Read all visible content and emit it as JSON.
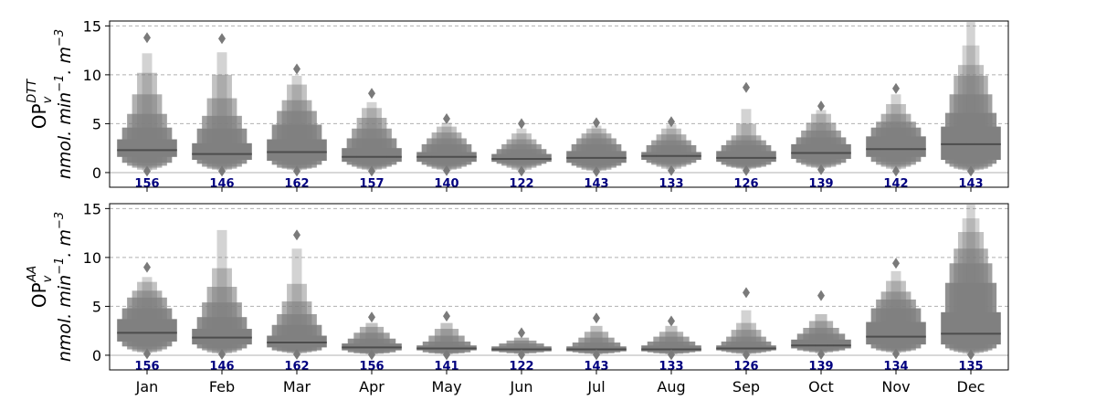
{
  "chart_data": [
    {
      "type": "boxen",
      "ylabel_main": "OP",
      "ylabel_sub": "v",
      "ylabel_sup": "DTT",
      "ylabel_units": "nmol. min",
      "ylabel_units_sup1": "−1",
      "ylabel_units_mid": ". m",
      "ylabel_units_sup2": "−3",
      "ylim": [
        -1.5,
        15.5
      ],
      "yticks": [
        0,
        5,
        10,
        15
      ],
      "grid": true,
      "series": [
        {
          "month": "Jan",
          "count": "156",
          "median": 2.3,
          "boxes": [
            [
              1.6,
              3.4
            ],
            [
              1.0,
              4.6
            ],
            [
              0.7,
              6.0
            ],
            [
              0.5,
              8.0
            ],
            [
              0.3,
              10.2
            ],
            [
              0.2,
              12.2
            ]
          ],
          "outliers_high": [
            13.8
          ],
          "outliers_low": [
            0.15
          ]
        },
        {
          "month": "Feb",
          "count": "146",
          "median": 1.9,
          "boxes": [
            [
              1.3,
              3.0
            ],
            [
              0.9,
              4.5
            ],
            [
              0.6,
              5.8
            ],
            [
              0.4,
              7.6
            ],
            [
              0.3,
              10.0
            ],
            [
              0.2,
              12.3
            ]
          ],
          "outliers_high": [
            13.7
          ],
          "outliers_low": [
            0.15
          ]
        },
        {
          "month": "Mar",
          "count": "162",
          "median": 2.1,
          "boxes": [
            [
              1.2,
              3.4
            ],
            [
              0.8,
              4.9
            ],
            [
              0.5,
              6.3
            ],
            [
              0.4,
              7.4
            ],
            [
              0.3,
              9.0
            ],
            [
              0.2,
              9.9
            ]
          ],
          "outliers_high": [
            10.6
          ],
          "outliers_low": [
            0.15
          ]
        },
        {
          "month": "Apr",
          "count": "157",
          "median": 1.6,
          "boxes": [
            [
              1.1,
              2.5
            ],
            [
              0.8,
              3.5
            ],
            [
              0.6,
              4.5
            ],
            [
              0.4,
              5.6
            ],
            [
              0.3,
              6.6
            ],
            [
              0.2,
              7.2
            ]
          ],
          "outliers_high": [
            8.1
          ],
          "outliers_low": [
            0.15
          ]
        },
        {
          "month": "May",
          "count": "140",
          "median": 1.6,
          "boxes": [
            [
              1.1,
              2.1
            ],
            [
              0.8,
              2.9
            ],
            [
              0.6,
              3.5
            ],
            [
              0.4,
              4.1
            ],
            [
              0.3,
              4.7
            ],
            [
              0.2,
              5.1
            ]
          ],
          "outliers_high": [
            5.5
          ],
          "outliers_low": [
            0.2
          ]
        },
        {
          "month": "Jun",
          "count": "122",
          "median": 1.4,
          "boxes": [
            [
              1.1,
              1.9
            ],
            [
              0.9,
              2.4
            ],
            [
              0.7,
              2.9
            ],
            [
              0.5,
              3.4
            ],
            [
              0.3,
              4.0
            ],
            [
              0.2,
              4.5
            ]
          ],
          "outliers_high": [
            5.0
          ],
          "outliers_low": [
            0.15
          ]
        },
        {
          "month": "Jul",
          "count": "143",
          "median": 1.5,
          "boxes": [
            [
              1.0,
              2.2
            ],
            [
              0.7,
              2.9
            ],
            [
              0.5,
              3.5
            ],
            [
              0.3,
              4.0
            ],
            [
              0.2,
              4.5
            ],
            [
              0.15,
              4.8
            ]
          ],
          "outliers_high": [
            5.1
          ],
          "outliers_low": [
            0.1
          ]
        },
        {
          "month": "Aug",
          "count": "133",
          "median": 1.7,
          "boxes": [
            [
              1.3,
              2.1
            ],
            [
              1.0,
              2.8
            ],
            [
              0.8,
              3.3
            ],
            [
              0.6,
              3.9
            ],
            [
              0.4,
              4.5
            ],
            [
              0.3,
              4.9
            ]
          ],
          "outliers_high": [
            5.2
          ],
          "outliers_low": [
            0.2
          ]
        },
        {
          "month": "Sep",
          "count": "126",
          "median": 1.5,
          "boxes": [
            [
              1.1,
              2.2
            ],
            [
              0.8,
              2.8
            ],
            [
              0.6,
              3.3
            ],
            [
              0.5,
              3.8
            ],
            [
              0.4,
              5.0
            ],
            [
              0.3,
              6.5
            ]
          ],
          "outliers_high": [
            8.7
          ],
          "outliers_low": [
            0.2
          ]
        },
        {
          "month": "Oct",
          "count": "139",
          "median": 2.0,
          "boxes": [
            [
              1.4,
              2.9
            ],
            [
              1.0,
              3.6
            ],
            [
              0.8,
              4.3
            ],
            [
              0.6,
              5.1
            ],
            [
              0.5,
              6.0
            ],
            [
              0.4,
              6.4
            ]
          ],
          "outliers_high": [
            6.8
          ],
          "outliers_low": [
            0.3
          ]
        },
        {
          "month": "Nov",
          "count": "142",
          "median": 2.4,
          "boxes": [
            [
              1.6,
              3.7
            ],
            [
              1.1,
              4.6
            ],
            [
              0.8,
              5.2
            ],
            [
              0.6,
              6.0
            ],
            [
              0.4,
              7.0
            ],
            [
              0.3,
              8.0
            ]
          ],
          "outliers_high": [
            8.6
          ],
          "outliers_low": [
            0.15
          ]
        },
        {
          "month": "Dec",
          "count": "143",
          "median": 2.9,
          "boxes": [
            [
              1.3,
              4.7
            ],
            [
              0.9,
              6.1
            ],
            [
              0.6,
              8.0
            ],
            [
              0.4,
              9.9
            ],
            [
              0.3,
              11.0
            ],
            [
              0.2,
              13.0
            ],
            [
              0.15,
              15.4
            ]
          ],
          "outliers_high": [],
          "outliers_low": [
            0.15
          ]
        }
      ]
    },
    {
      "type": "boxen",
      "ylabel_main": "OP",
      "ylabel_sub": "v",
      "ylabel_sup": "AA",
      "ylabel_units": "nmol. min",
      "ylabel_units_sup1": "−1",
      "ylabel_units_mid": ". m",
      "ylabel_units_sup2": "−3",
      "ylim": [
        -1.5,
        15.5
      ],
      "yticks": [
        0,
        5,
        10,
        15
      ],
      "grid": true,
      "series": [
        {
          "month": "Jan",
          "count": "156",
          "median": 2.3,
          "boxes": [
            [
              1.4,
              3.7
            ],
            [
              0.9,
              4.8
            ],
            [
              0.6,
              5.9
            ],
            [
              0.4,
              6.6
            ],
            [
              0.3,
              7.5
            ],
            [
              0.2,
              8.0
            ]
          ],
          "outliers_high": [
            9.0
          ],
          "outliers_low": [
            0.15
          ]
        },
        {
          "month": "Feb",
          "count": "146",
          "median": 1.8,
          "boxes": [
            [
              1.1,
              2.7
            ],
            [
              0.7,
              3.9
            ],
            [
              0.5,
              5.4
            ],
            [
              0.3,
              7.0
            ],
            [
              0.2,
              8.9
            ],
            [
              0.15,
              12.8
            ]
          ],
          "outliers_high": [],
          "outliers_low": [
            0.1
          ]
        },
        {
          "month": "Mar",
          "count": "162",
          "median": 1.3,
          "boxes": [
            [
              0.8,
              2.0
            ],
            [
              0.5,
              3.1
            ],
            [
              0.4,
              4.2
            ],
            [
              0.3,
              5.5
            ],
            [
              0.2,
              7.3
            ],
            [
              0.15,
              10.9
            ]
          ],
          "outliers_high": [
            12.3
          ],
          "outliers_low": [
            0.1
          ]
        },
        {
          "month": "Apr",
          "count": "156",
          "median": 0.8,
          "boxes": [
            [
              0.5,
              1.2
            ],
            [
              0.3,
              1.7
            ],
            [
              0.2,
              2.3
            ],
            [
              0.15,
              2.9
            ],
            [
              0.1,
              3.3
            ]
          ],
          "outliers_high": [
            3.9
          ],
          "outliers_low": [
            0.05
          ]
        },
        {
          "month": "May",
          "count": "141",
          "median": 0.7,
          "boxes": [
            [
              0.5,
              1.0
            ],
            [
              0.3,
              1.4
            ],
            [
              0.2,
              2.0
            ],
            [
              0.15,
              2.7
            ],
            [
              0.1,
              3.3
            ]
          ],
          "outliers_high": [
            4.0
          ],
          "outliers_low": [
            0.05
          ]
        },
        {
          "month": "Jun",
          "count": "122",
          "median": 0.6,
          "boxes": [
            [
              0.4,
              0.9
            ],
            [
              0.3,
              1.2
            ],
            [
              0.2,
              1.5
            ],
            [
              0.15,
              1.8
            ]
          ],
          "outliers_high": [
            2.3
          ],
          "outliers_low": [
            0.05
          ]
        },
        {
          "month": "Jul",
          "count": "143",
          "median": 0.6,
          "boxes": [
            [
              0.4,
              0.9
            ],
            [
              0.3,
              1.3
            ],
            [
              0.2,
              1.8
            ],
            [
              0.15,
              2.4
            ],
            [
              0.1,
              3.0
            ]
          ],
          "outliers_high": [
            3.8
          ],
          "outliers_low": [
            0.05
          ]
        },
        {
          "month": "Aug",
          "count": "133",
          "median": 0.6,
          "boxes": [
            [
              0.4,
              1.0
            ],
            [
              0.3,
              1.4
            ],
            [
              0.2,
              1.9
            ],
            [
              0.15,
              2.4
            ],
            [
              0.1,
              3.0
            ]
          ],
          "outliers_high": [
            3.5
          ],
          "outliers_low": [
            0.05
          ]
        },
        {
          "month": "Sep",
          "count": "126",
          "median": 0.7,
          "boxes": [
            [
              0.5,
              1.0
            ],
            [
              0.4,
              1.4
            ],
            [
              0.3,
              1.9
            ],
            [
              0.2,
              2.6
            ],
            [
              0.15,
              3.3
            ],
            [
              0.1,
              4.6
            ]
          ],
          "outliers_high": [
            6.4
          ],
          "outliers_low": [
            0.05
          ]
        },
        {
          "month": "Oct",
          "count": "139",
          "median": 1.0,
          "boxes": [
            [
              0.7,
              1.6
            ],
            [
              0.5,
              2.2
            ],
            [
              0.4,
              2.8
            ],
            [
              0.3,
              3.5
            ],
            [
              0.2,
              4.2
            ]
          ],
          "outliers_high": [
            6.1
          ],
          "outliers_low": [
            0.1
          ]
        },
        {
          "month": "Nov",
          "count": "134",
          "median": 1.9,
          "boxes": [
            [
              1.1,
              3.4
            ],
            [
              0.7,
              4.8
            ],
            [
              0.5,
              5.7
            ],
            [
              0.4,
              6.5
            ],
            [
              0.3,
              7.6
            ],
            [
              0.2,
              8.6
            ]
          ],
          "outliers_high": [
            9.4
          ],
          "outliers_low": [
            0.15
          ]
        },
        {
          "month": "Dec",
          "count": "135",
          "median": 2.2,
          "boxes": [
            [
              1.1,
              4.4
            ],
            [
              0.7,
              7.4
            ],
            [
              0.5,
              9.4
            ],
            [
              0.35,
              10.9
            ],
            [
              0.25,
              12.6
            ],
            [
              0.15,
              14.0
            ],
            [
              0.1,
              15.4
            ]
          ],
          "outliers_high": [],
          "outliers_low": [
            0.05
          ]
        }
      ]
    }
  ],
  "colors": {
    "box": "#808080",
    "median": "#4d4d4d",
    "count_text": "#000080",
    "grid": "#b0b0b0",
    "zero_line": "#cccccc",
    "axis": "#000000"
  }
}
